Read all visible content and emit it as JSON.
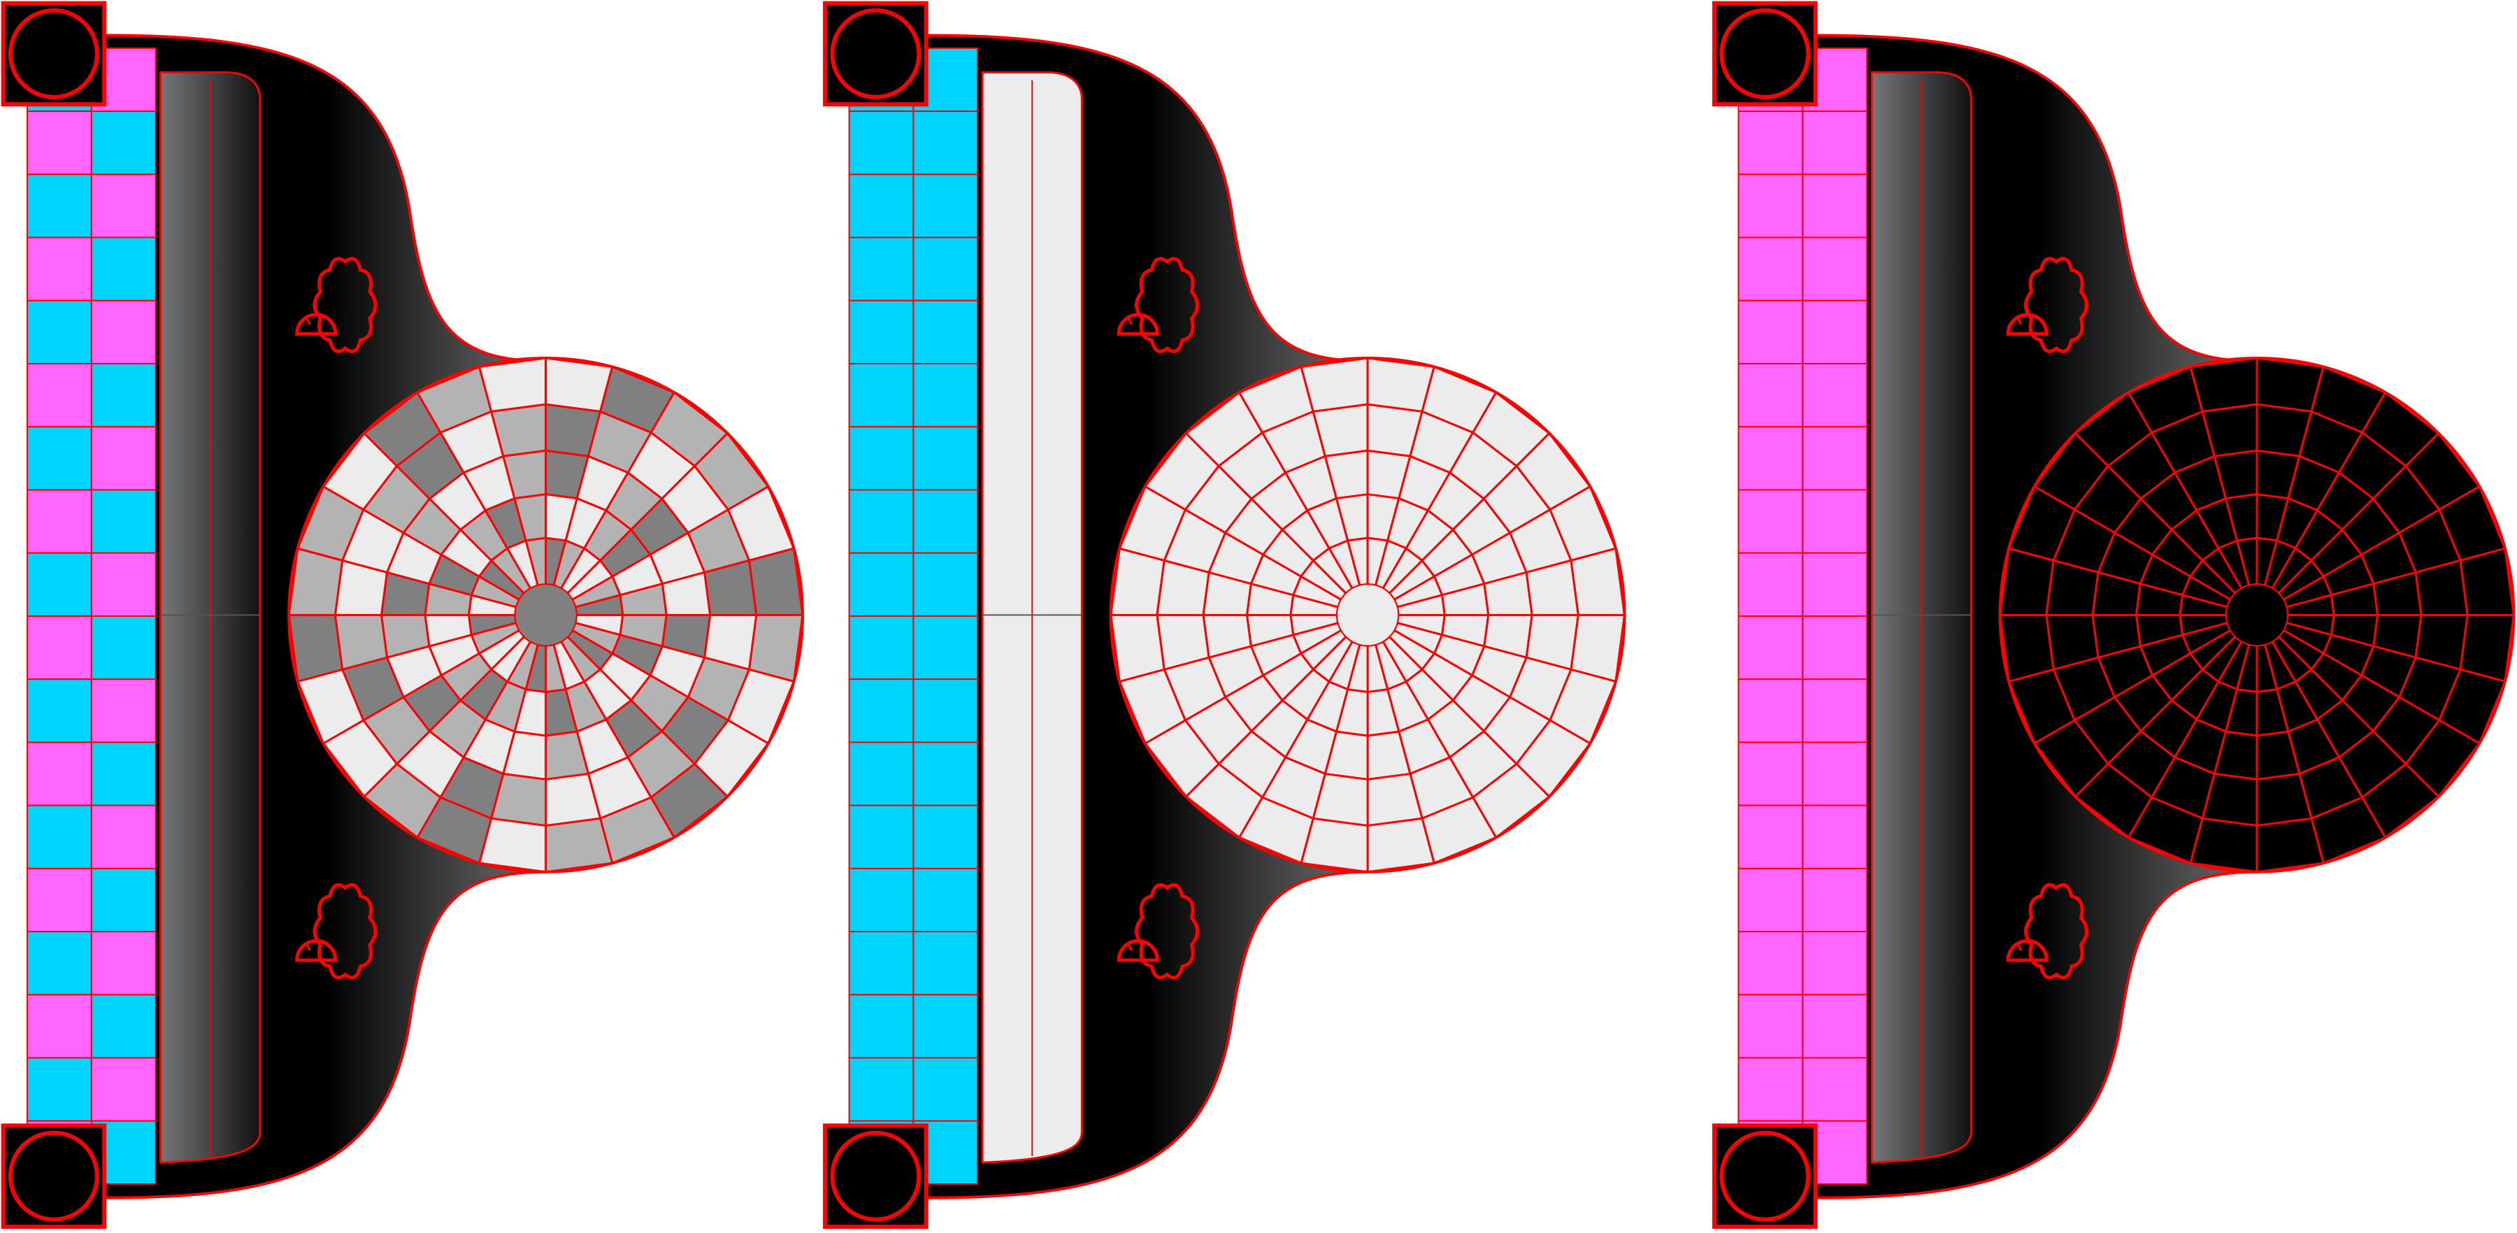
{
  "diagram": {
    "variants": [
      {
        "id": "variant-1",
        "strip_pattern": "checker",
        "strip_colors": [
          "#00d5ff",
          "#ff66ff"
        ],
        "panel_style": "gradient-dark",
        "disc_style": "checker-gray",
        "disc_colors": [
          "#ececec",
          "#b3b3b3",
          "#808080"
        ]
      },
      {
        "id": "variant-2",
        "strip_pattern": "solid",
        "strip_colors": [
          "#00d5ff"
        ],
        "panel_style": "light-gray",
        "disc_style": "solid",
        "disc_colors": [
          "#ececec"
        ]
      },
      {
        "id": "variant-3",
        "strip_pattern": "solid",
        "strip_colors": [
          "#ff66ff"
        ],
        "panel_style": "gradient-dark",
        "disc_style": "solid",
        "disc_colors": [
          "#000000"
        ]
      }
    ],
    "outline_color": "#ff0000",
    "corner_fill": "#000000",
    "body_gradient": [
      "#000000",
      "#707070"
    ]
  }
}
